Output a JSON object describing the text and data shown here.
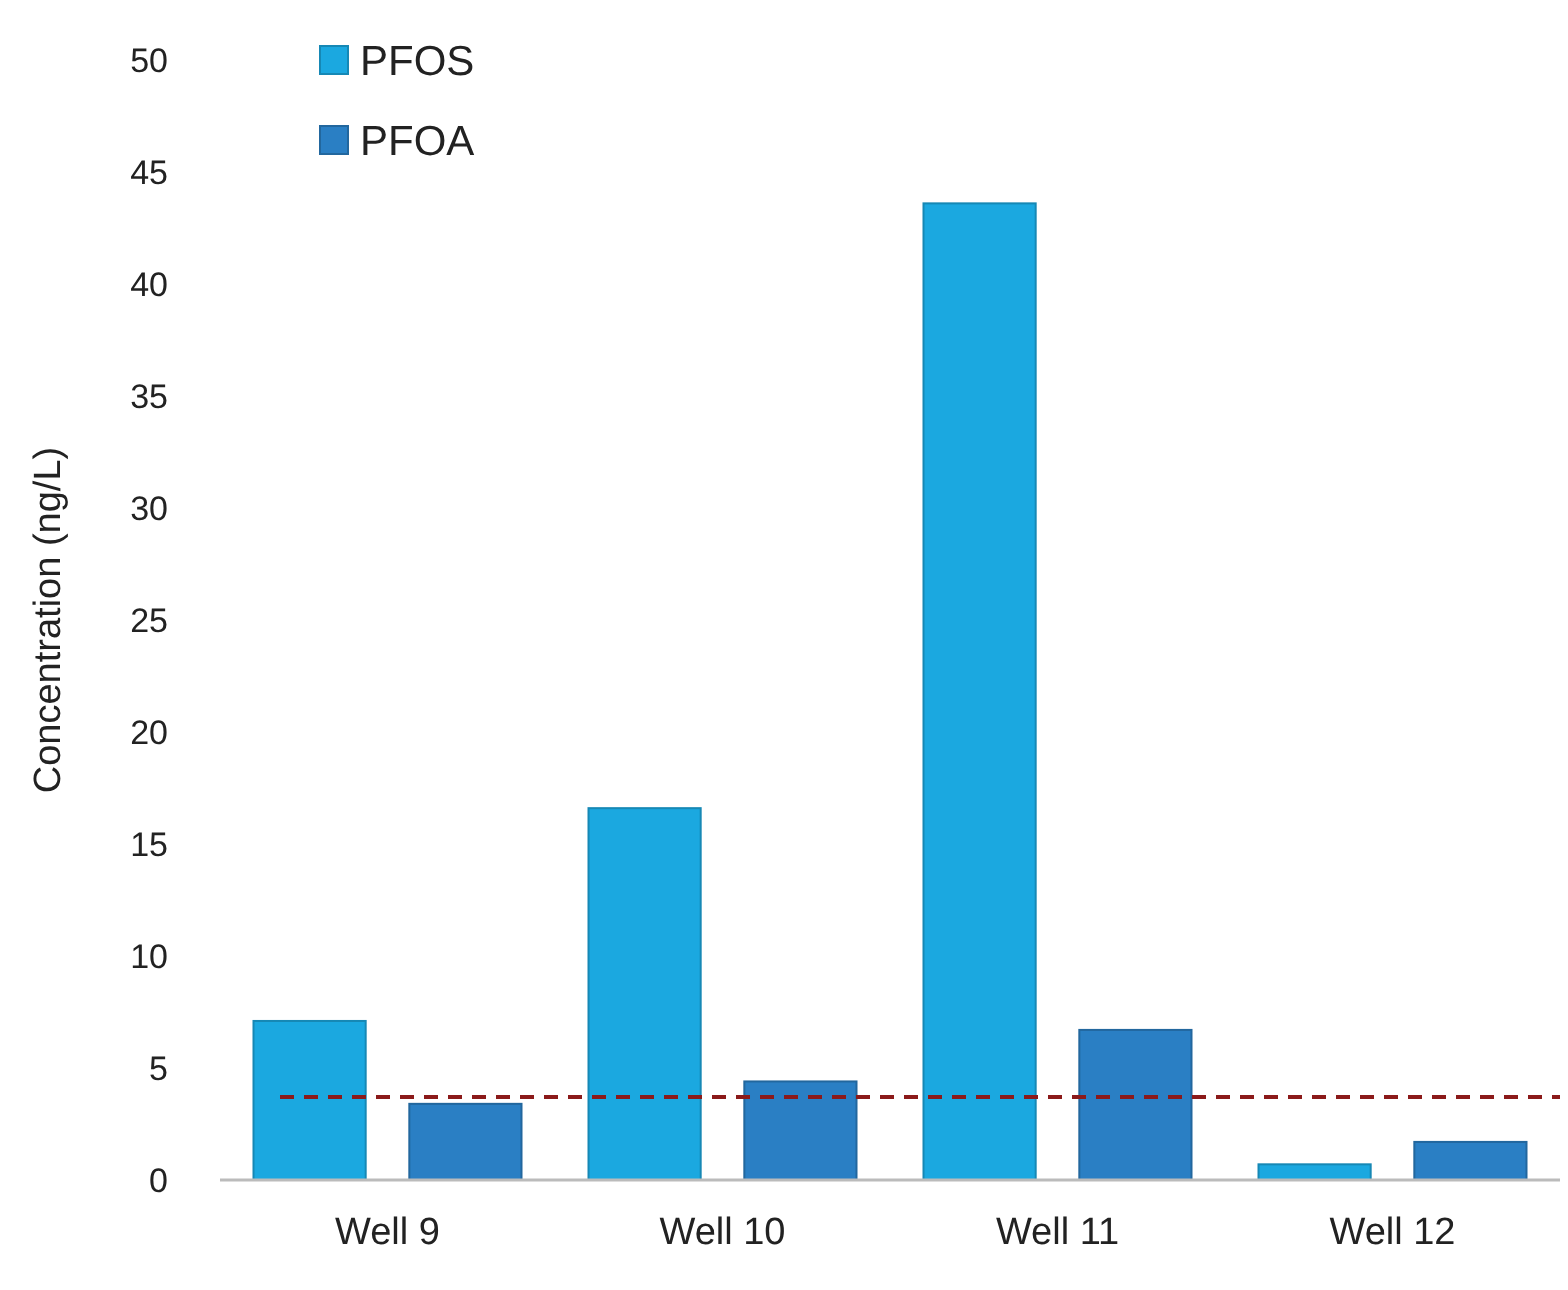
{
  "chart_data": {
    "type": "bar",
    "ylabel": "Concentration (ng/L)",
    "categories": [
      "Well 9",
      "Well 10",
      "Well 11",
      "Well 12"
    ],
    "series": [
      {
        "name": "PFOS",
        "color": "#1ba8e0",
        "values": [
          7.1,
          16.6,
          43.6,
          0.7
        ]
      },
      {
        "name": "PFOA",
        "color": "#2a7fc4",
        "values": [
          3.4,
          4.4,
          6.7,
          1.7
        ]
      }
    ],
    "ylim": [
      0,
      50
    ],
    "yticks": [
      0,
      5,
      10,
      15,
      20,
      25,
      30,
      35,
      40,
      45,
      50
    ],
    "grid": false,
    "legend": "top left",
    "ref_lines": [
      {
        "axis": "y",
        "value": 3.7,
        "color": "#8b1a1a",
        "line_style": "dashed"
      }
    ]
  }
}
